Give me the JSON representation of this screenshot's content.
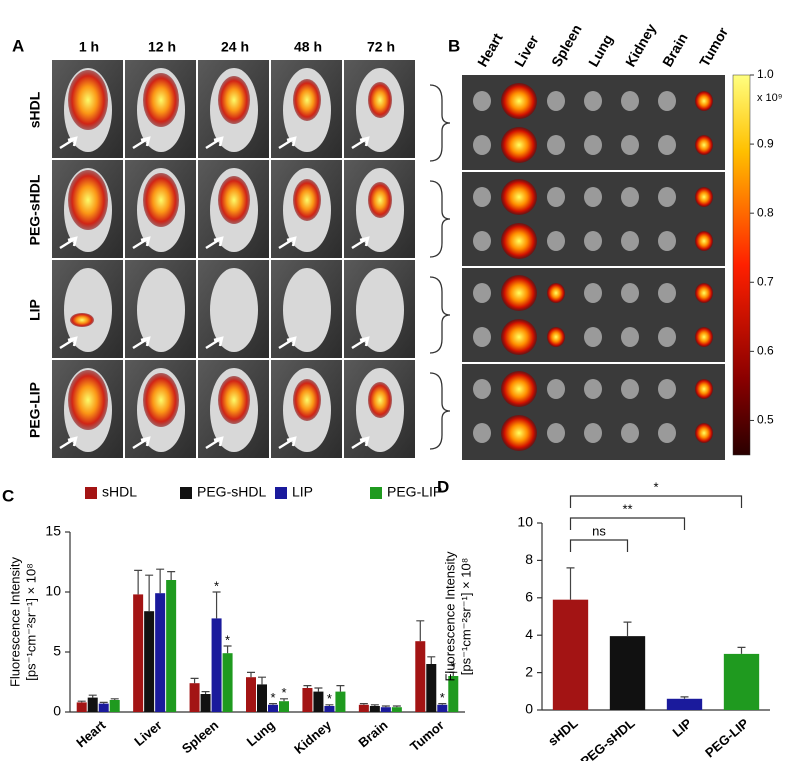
{
  "panel_a": {
    "label": "A",
    "times": [
      "1 h",
      "12 h",
      "24 h",
      "48 h",
      "72 h"
    ],
    "groups": [
      "sHDL",
      "PEG-sHDL",
      "LIP",
      "PEG-LIP"
    ]
  },
  "panel_b": {
    "label": "B",
    "organs": [
      "Heart",
      "Liver",
      "Spleen",
      "Lung",
      "Kidney",
      "Brain",
      "Tumor"
    ],
    "colorbar": {
      "lim": [
        0.45,
        1.0
      ],
      "ticks": [
        {
          "value": 1.0,
          "label": "1.0"
        },
        0.9,
        0.8,
        0.7,
        0.6,
        0.5
      ],
      "unit": "x 10⁹"
    }
  },
  "chart_data": [
    {
      "type": "grouped_bar",
      "panel": "C",
      "y_label": [
        "Fluorescence Intensity",
        "[ps⁻¹cm⁻²sr⁻¹] × 10⁸"
      ],
      "categories": [
        "Heart",
        "Liver",
        "Spleen",
        "Lung",
        "Kidney",
        "Brain",
        "Tumor"
      ],
      "series": [
        {
          "name": "sHDL",
          "color": "#a31414",
          "values": [
            0.8,
            9.8,
            2.4,
            2.9,
            2.0,
            0.6,
            5.9
          ],
          "errors": [
            0.1,
            2.0,
            0.4,
            0.4,
            0.2,
            0.1,
            1.7
          ],
          "marks": [
            null,
            null,
            null,
            null,
            null,
            null,
            null
          ]
        },
        {
          "name": "PEG-sHDL",
          "color": "#111111",
          "values": [
            1.2,
            8.4,
            1.5,
            2.3,
            1.7,
            0.5,
            4.0
          ],
          "errors": [
            0.2,
            3.0,
            0.2,
            0.6,
            0.3,
            0.1,
            0.6
          ],
          "marks": [
            null,
            null,
            null,
            null,
            null,
            null,
            null
          ]
        },
        {
          "name": "LIP",
          "color": "#1a1a9c",
          "values": [
            0.7,
            9.9,
            7.8,
            0.6,
            0.5,
            0.4,
            0.6
          ],
          "errors": [
            0.1,
            2.0,
            2.2,
            0.1,
            0.1,
            0.1,
            0.1
          ],
          "marks": [
            null,
            null,
            "*",
            "*",
            "*",
            null,
            "*"
          ]
        },
        {
          "name": "PEG-LIP",
          "color": "#1f9a1f",
          "values": [
            1.0,
            11.0,
            4.9,
            0.9,
            1.7,
            0.4,
            3.0
          ],
          "errors": [
            0.1,
            0.7,
            0.6,
            0.2,
            0.5,
            0.1,
            0.3
          ],
          "marks": [
            null,
            null,
            "*",
            "*",
            null,
            null,
            "*"
          ]
        }
      ],
      "ylim": [
        0,
        15
      ],
      "yticks": [
        0,
        5,
        10,
        15
      ]
    },
    {
      "type": "bar",
      "panel": "D",
      "y_label": [
        "Fluorescence Intensity",
        "[ps⁻¹cm⁻²sr⁻¹] × 10⁸"
      ],
      "categories": [
        "sHDL",
        "PEG-sHDL",
        "LIP",
        "PEG-LIP"
      ],
      "values": [
        5.9,
        3.95,
        0.6,
        3.0
      ],
      "errors": [
        1.7,
        0.75,
        0.1,
        0.35
      ],
      "colors": [
        "#a31414",
        "#111111",
        "#1a1a9c",
        "#1f9a1f"
      ],
      "comparisons": [
        {
          "pair": [
            0,
            1
          ],
          "label": "ns"
        },
        {
          "pair": [
            0,
            2
          ],
          "label": "**"
        },
        {
          "pair": [
            0,
            3
          ],
          "label": "*"
        }
      ],
      "ylim": [
        0,
        10
      ],
      "yticks": [
        0,
        2,
        4,
        6,
        8,
        10
      ]
    }
  ]
}
